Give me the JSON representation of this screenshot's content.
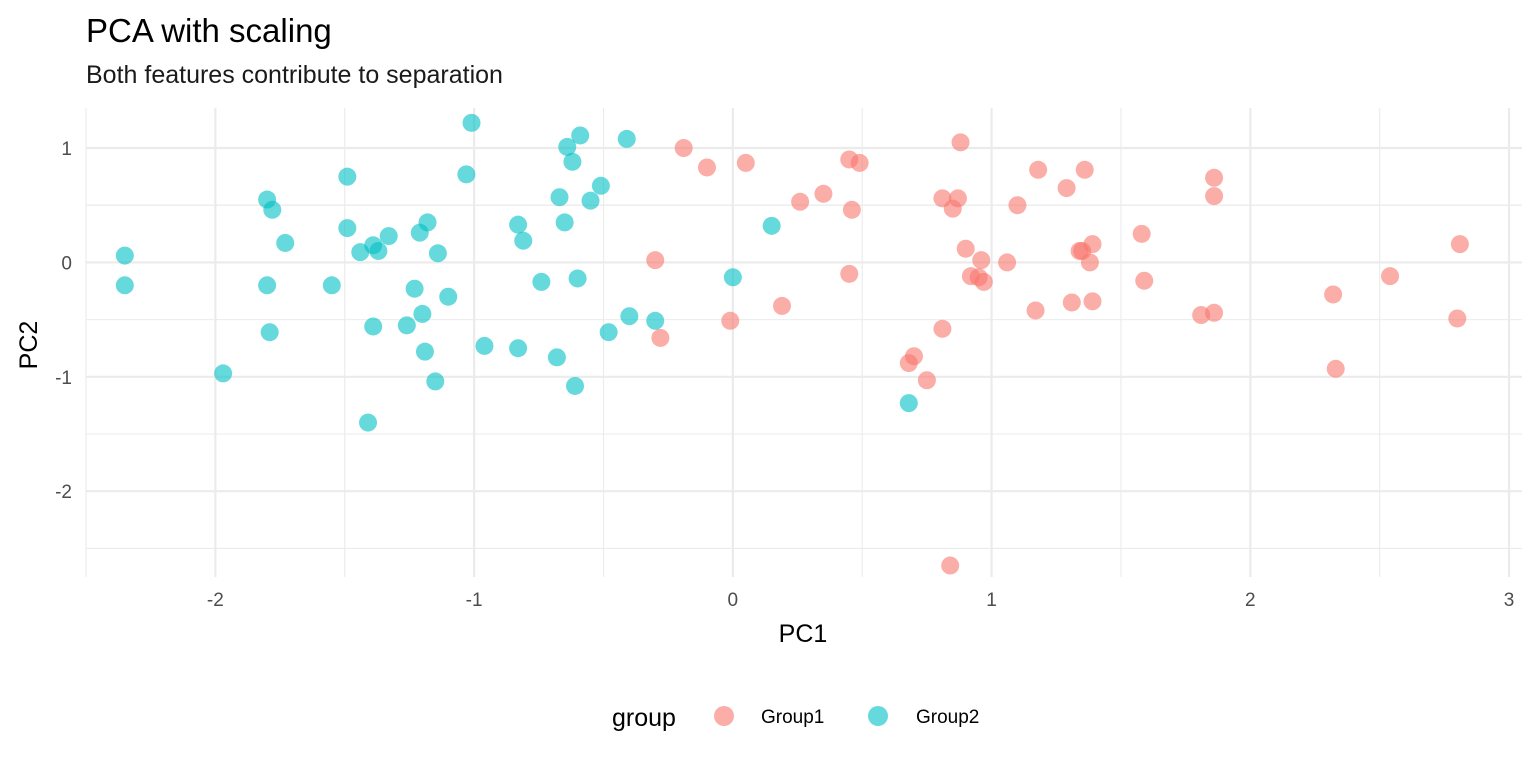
{
  "chart_data": {
    "type": "scatter",
    "title": "PCA with scaling",
    "subtitle": "Both features contribute to separation",
    "xlabel": "PC1",
    "ylabel": "PC2",
    "xlim": [
      -2.5,
      3.05
    ],
    "ylim": [
      -2.75,
      1.35
    ],
    "x_ticks": [
      -2,
      -1,
      0,
      1,
      2,
      3
    ],
    "y_ticks": [
      -2,
      -1,
      0,
      1
    ],
    "x_tick_labels": [
      "-2",
      "-1",
      "0",
      "1",
      "2",
      "3"
    ],
    "y_tick_labels": [
      "-2",
      "-1",
      "0",
      "1"
    ],
    "grid": true,
    "legend": {
      "title": "group",
      "position": "bottom"
    },
    "series": [
      {
        "name": "Group1",
        "color": "#F8766D",
        "points": [
          [
            -0.19,
            1.0
          ],
          [
            -0.1,
            0.83
          ],
          [
            0.05,
            0.87
          ],
          [
            0.26,
            0.53
          ],
          [
            0.35,
            0.6
          ],
          [
            0.45,
            0.9
          ],
          [
            0.49,
            0.87
          ],
          [
            0.46,
            0.46
          ],
          [
            0.45,
            -0.1
          ],
          [
            0.19,
            -0.38
          ],
          [
            -0.01,
            -0.51
          ],
          [
            -0.3,
            0.02
          ],
          [
            -0.28,
            -0.66
          ],
          [
            0.68,
            -0.88
          ],
          [
            0.7,
            -0.82
          ],
          [
            0.75,
            -1.03
          ],
          [
            0.81,
            -0.58
          ],
          [
            0.81,
            0.56
          ],
          [
            0.85,
            0.47
          ],
          [
            0.87,
            0.56
          ],
          [
            0.88,
            1.05
          ],
          [
            0.9,
            0.12
          ],
          [
            0.92,
            -0.12
          ],
          [
            0.95,
            -0.13
          ],
          [
            0.96,
            0.02
          ],
          [
            0.97,
            -0.17
          ],
          [
            1.06,
            0.0
          ],
          [
            1.1,
            0.5
          ],
          [
            1.17,
            -0.42
          ],
          [
            1.18,
            0.81
          ],
          [
            1.29,
            0.65
          ],
          [
            1.31,
            -0.35
          ],
          [
            1.34,
            0.1
          ],
          [
            1.35,
            0.1
          ],
          [
            1.36,
            0.81
          ],
          [
            1.38,
            0.0
          ],
          [
            1.39,
            0.16
          ],
          [
            1.39,
            -0.34
          ],
          [
            1.58,
            0.25
          ],
          [
            1.59,
            -0.16
          ],
          [
            1.81,
            -0.46
          ],
          [
            1.86,
            -0.44
          ],
          [
            1.86,
            0.74
          ],
          [
            1.86,
            0.58
          ],
          [
            2.32,
            -0.28
          ],
          [
            2.33,
            -0.93
          ],
          [
            2.54,
            -0.12
          ],
          [
            2.8,
            -0.49
          ],
          [
            2.81,
            0.16
          ],
          [
            0.84,
            -2.65
          ]
        ]
      },
      {
        "name": "Group2",
        "color": "#00BFC4",
        "points": [
          [
            -2.35,
            0.06
          ],
          [
            -2.35,
            -0.2
          ],
          [
            -1.97,
            -0.97
          ],
          [
            -1.8,
            0.55
          ],
          [
            -1.78,
            0.46
          ],
          [
            -1.8,
            -0.2
          ],
          [
            -1.79,
            -0.61
          ],
          [
            -1.73,
            0.17
          ],
          [
            -1.55,
            -0.2
          ],
          [
            -1.49,
            0.75
          ],
          [
            -1.49,
            0.3
          ],
          [
            -1.44,
            0.09
          ],
          [
            -1.39,
            0.15
          ],
          [
            -1.37,
            0.1
          ],
          [
            -1.33,
            0.23
          ],
          [
            -1.39,
            -0.56
          ],
          [
            -1.41,
            -1.4
          ],
          [
            -1.26,
            -0.55
          ],
          [
            -1.23,
            -0.23
          ],
          [
            -1.21,
            0.26
          ],
          [
            -1.2,
            -0.45
          ],
          [
            -1.19,
            -0.78
          ],
          [
            -1.18,
            0.35
          ],
          [
            -1.15,
            -1.04
          ],
          [
            -1.14,
            0.08
          ],
          [
            -1.1,
            -0.3
          ],
          [
            -1.03,
            0.77
          ],
          [
            -1.01,
            1.22
          ],
          [
            -0.96,
            -0.73
          ],
          [
            -0.83,
            0.33
          ],
          [
            -0.83,
            -0.75
          ],
          [
            -0.81,
            0.19
          ],
          [
            -0.74,
            -0.17
          ],
          [
            -0.68,
            -0.83
          ],
          [
            -0.67,
            0.57
          ],
          [
            -0.65,
            0.35
          ],
          [
            -0.64,
            1.01
          ],
          [
            -0.62,
            0.88
          ],
          [
            -0.61,
            -1.08
          ],
          [
            -0.6,
            -0.14
          ],
          [
            -0.59,
            1.11
          ],
          [
            -0.55,
            0.54
          ],
          [
            -0.51,
            0.67
          ],
          [
            -0.48,
            -0.61
          ],
          [
            -0.41,
            1.08
          ],
          [
            -0.4,
            -0.47
          ],
          [
            -0.3,
            -0.51
          ],
          [
            0.0,
            -0.13
          ],
          [
            0.15,
            0.32
          ],
          [
            0.68,
            -1.23
          ]
        ]
      }
    ]
  }
}
